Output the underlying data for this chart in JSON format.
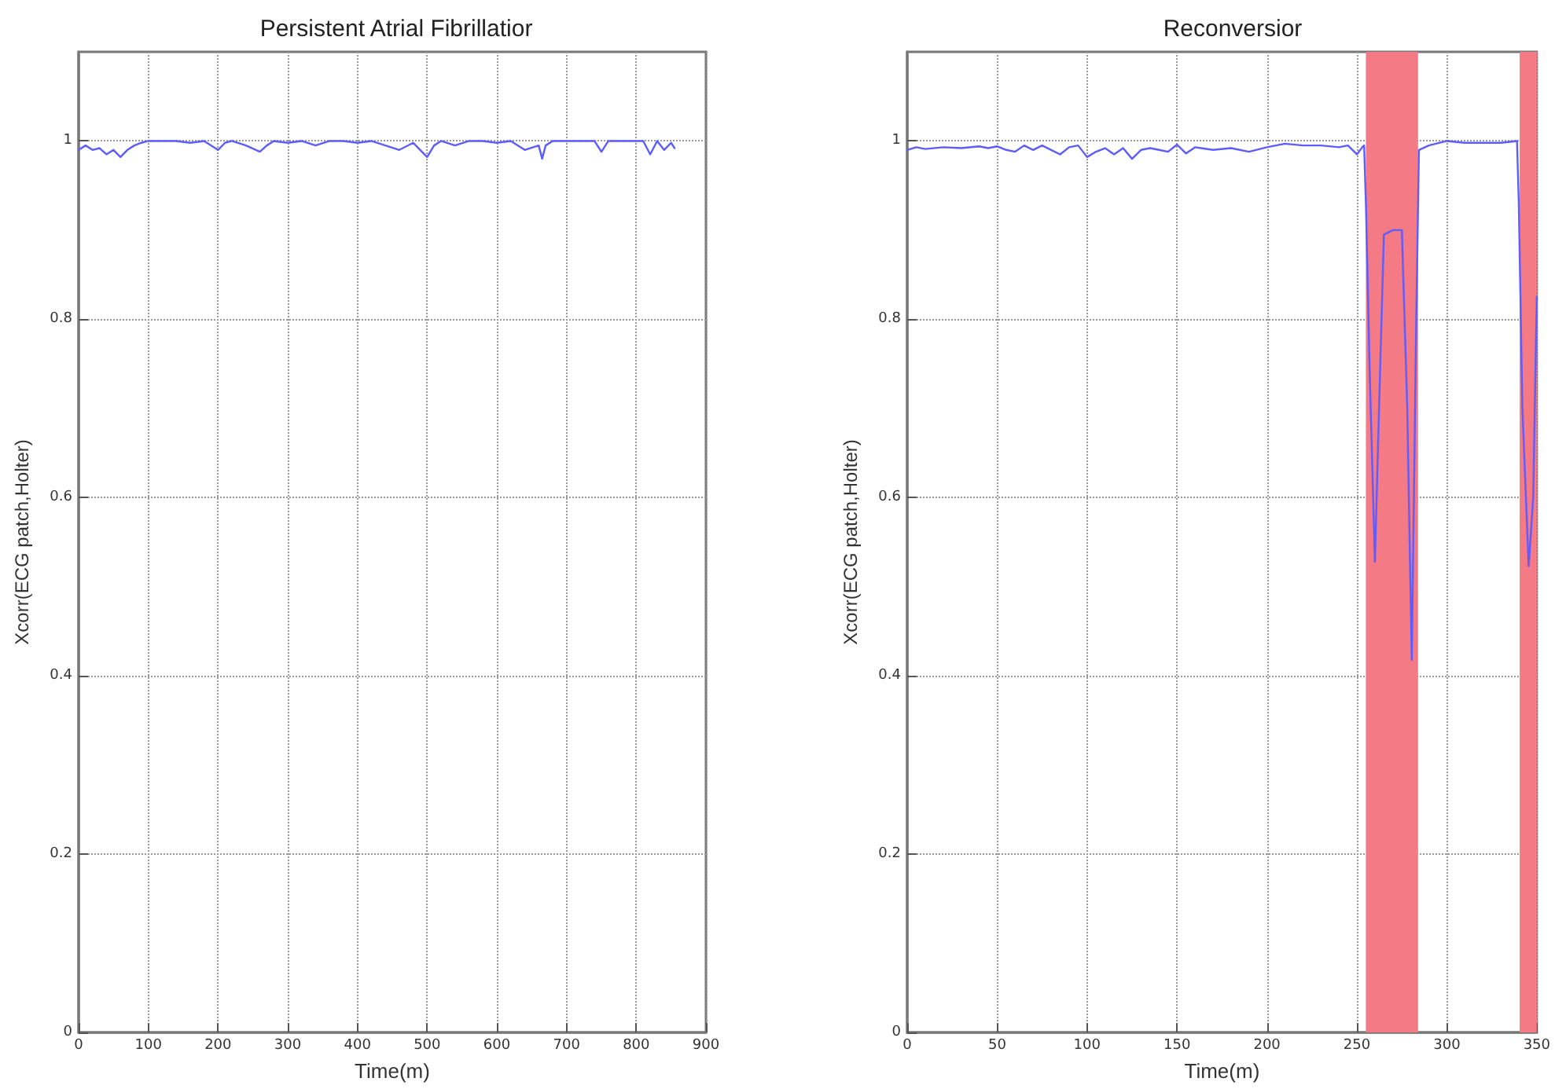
{
  "chart_data": [
    {
      "type": "line",
      "title": "Persistent Atrial Fibrillatior",
      "xlabel": "Time(m)",
      "ylabel": "Xcorr(ECG patch,Holter)",
      "xlim": [
        0,
        900
      ],
      "xticks": [
        0,
        100,
        200,
        300,
        400,
        500,
        600,
        700,
        800,
        900
      ],
      "ylim": [
        0,
        1.1
      ],
      "yticks": [
        0,
        0.2,
        0.4,
        0.6,
        0.8,
        1
      ],
      "grid": true,
      "line_style": "solid",
      "marker": "none",
      "series": [
        {
          "color": "#5c5cff",
          "x": [
            0,
            10,
            20,
            30,
            40,
            50,
            60,
            70,
            80,
            90,
            100,
            120,
            140,
            160,
            180,
            200,
            210,
            220,
            240,
            260,
            270,
            280,
            300,
            320,
            340,
            360,
            380,
            400,
            420,
            440,
            460,
            480,
            490,
            500,
            510,
            520,
            540,
            560,
            580,
            600,
            620,
            640,
            660,
            665,
            670,
            680,
            700,
            720,
            740,
            750,
            760,
            780,
            800,
            810,
            820,
            830,
            840,
            850,
            855
          ],
          "values": [
            0.99,
            0.995,
            0.99,
            0.992,
            0.985,
            0.99,
            0.982,
            0.99,
            0.995,
            0.998,
            1.0,
            1.0,
            1.0,
            0.998,
            1.0,
            0.99,
            0.998,
            1.0,
            0.995,
            0.988,
            0.995,
            1.0,
            0.998,
            1.0,
            0.995,
            1.0,
            1.0,
            0.998,
            1.0,
            0.995,
            0.99,
            0.998,
            0.99,
            0.982,
            0.995,
            1.0,
            0.995,
            1.0,
            1.0,
            0.998,
            1.0,
            0.99,
            0.995,
            0.98,
            0.995,
            1.0,
            1.0,
            1.0,
            1.0,
            0.988,
            1.0,
            1.0,
            1.0,
            1.0,
            0.985,
            1.0,
            0.99,
            0.998,
            0.992
          ]
        }
      ]
    },
    {
      "type": "line",
      "title": "Reconversior",
      "xlabel": "Time(m)",
      "ylabel": "Xcorr(ECG patch,Holter)",
      "xlim": [
        0,
        350
      ],
      "xticks": [
        0,
        50,
        100,
        150,
        200,
        250,
        300,
        350
      ],
      "ylim": [
        0,
        1.1
      ],
      "yticks": [
        0,
        0.2,
        0.4,
        0.6,
        0.8,
        1
      ],
      "grid": true,
      "line_style": "solid",
      "marker": "none",
      "bands": [
        {
          "axis": "x",
          "from": 255,
          "to": 284,
          "color": "#f47a85"
        },
        {
          "axis": "x",
          "from": 340.5,
          "to": 350,
          "color": "#f47a85"
        }
      ],
      "series": [
        {
          "color": "#5c5cff",
          "x": [
            0,
            5,
            10,
            20,
            30,
            40,
            45,
            50,
            55,
            60,
            65,
            70,
            75,
            80,
            85,
            90,
            95,
            100,
            105,
            110,
            115,
            120,
            125,
            130,
            135,
            140,
            145,
            150,
            155,
            160,
            170,
            180,
            190,
            200,
            210,
            220,
            230,
            240,
            245,
            250,
            253,
            254,
            255,
            257,
            260,
            263,
            265,
            270,
            275,
            278,
            280.5,
            283,
            284.5,
            290,
            300,
            310,
            320,
            330,
            339,
            340,
            342,
            345.5,
            348,
            350
          ],
          "values": [
            0.99,
            0.993,
            0.991,
            0.993,
            0.992,
            0.994,
            0.992,
            0.994,
            0.99,
            0.988,
            0.995,
            0.99,
            0.995,
            0.99,
            0.985,
            0.993,
            0.995,
            0.982,
            0.988,
            0.992,
            0.985,
            0.992,
            0.98,
            0.99,
            0.992,
            0.99,
            0.988,
            0.996,
            0.986,
            0.993,
            0.99,
            0.992,
            0.988,
            0.993,
            0.997,
            0.995,
            0.995,
            0.993,
            0.995,
            0.985,
            0.993,
            0.995,
            0.93,
            0.75,
            0.528,
            0.75,
            0.895,
            0.9,
            0.9,
            0.7,
            0.418,
            0.8,
            0.99,
            0.995,
            1.0,
            0.998,
            0.998,
            0.998,
            1.0,
            0.93,
            0.7,
            0.523,
            0.6,
            0.825
          ]
        }
      ]
    }
  ]
}
